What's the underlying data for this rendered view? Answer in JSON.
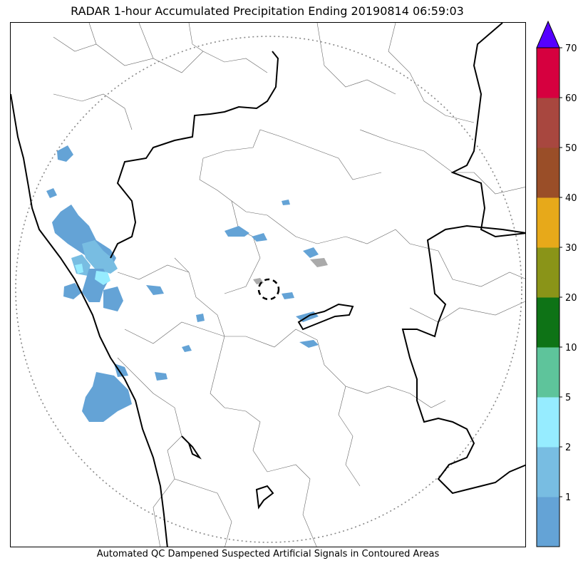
{
  "title": "RADAR 1-hour Accumulated Precipitation Ending 20190814 06:59:03",
  "footer": "Automated QC Dampened Suspected Artificial Signals in Contoured Areas",
  "colorbar": {
    "ticks": [
      "1",
      "2",
      "5",
      "10",
      "20",
      "30",
      "40",
      "50",
      "60",
      "70"
    ],
    "bins": [
      {
        "from": "0",
        "to": "1",
        "color": "#64a3d6"
      },
      {
        "from": "1",
        "to": "2",
        "color": "#78bde2"
      },
      {
        "from": "2",
        "to": "5",
        "color": "#96ecff"
      },
      {
        "from": "5",
        "to": "10",
        "color": "#5ec49b"
      },
      {
        "from": "10",
        "to": "20",
        "color": "#0e7316"
      },
      {
        "from": "20",
        "to": "30",
        "color": "#8a9418"
      },
      {
        "from": "30",
        "to": "40",
        "color": "#e7a91a"
      },
      {
        "from": "40",
        "to": "50",
        "color": "#9a4e28"
      },
      {
        "from": "50",
        "to": "60",
        "color": "#a8473f"
      },
      {
        "from": "60",
        "to": "70",
        "color": "#d6003f"
      }
    ],
    "extend_color": "#5500ff"
  },
  "map": {
    "range_ring": "dotted",
    "radar_site_marker": "dashed-circle",
    "boundaries": [
      "coastline",
      "state-boundaries",
      "district-boundaries"
    ]
  }
}
